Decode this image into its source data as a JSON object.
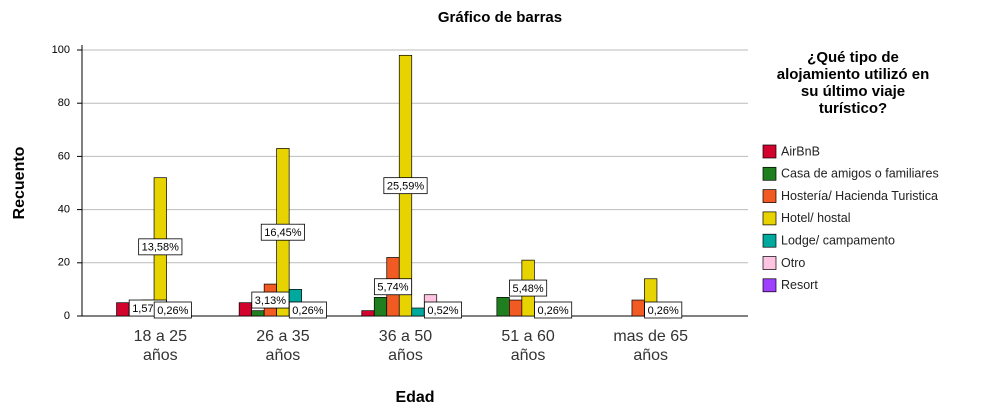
{
  "chart_data": {
    "type": "bar",
    "title": "Gráfico de barras",
    "x_label": "Edad",
    "y_label": "Recuento",
    "legend_title": "¿Qué tipo de alojamiento utilizó en su último viaje turístico?",
    "legend": "right",
    "categories": [
      "18 a 25 años",
      "26 a 35 años",
      "36 a 50 años",
      "51 a 60 años",
      "mas de 65 años"
    ],
    "series": [
      {
        "name": "AirBnB",
        "color": "#d2042d",
        "values": [
          5,
          5,
          2,
          0,
          0
        ],
        "percent_labels": [
          null,
          null,
          null,
          null,
          null
        ]
      },
      {
        "name": "Casa de amigos o familiares",
        "color": "#1f7f1f",
        "values": [
          0,
          2,
          7,
          7,
          0
        ],
        "percent_labels": [
          null,
          null,
          null,
          null,
          null
        ]
      },
      {
        "name": "Hostería/ Hacienda Turistica",
        "color": "#f15a22",
        "values": [
          6,
          12,
          22,
          6,
          6
        ],
        "percent_labels": [
          "1,57%",
          "3,13%",
          "5,74%",
          null,
          null
        ]
      },
      {
        "name": "Hotel/ hostal",
        "color": "#e6d300",
        "values": [
          52,
          63,
          98,
          21,
          14
        ],
        "percent_labels": [
          "13,58%",
          "16,45%",
          "25,59%",
          "5,48%",
          null
        ]
      },
      {
        "name": "Lodge/ campamento",
        "color": "#00a99d",
        "values": [
          1,
          10,
          3,
          2,
          1
        ],
        "percent_labels": [
          "0,26%",
          null,
          null,
          null,
          "0,26%"
        ]
      },
      {
        "name": "Otro",
        "color": "#ffc4e1",
        "values": [
          0,
          1,
          8,
          1,
          0
        ],
        "percent_labels": [
          null,
          "0,26%",
          null,
          "0,26%",
          null
        ]
      },
      {
        "name": "Resort",
        "color": "#a040ff",
        "values": [
          0,
          0,
          2,
          0,
          0
        ],
        "percent_labels": [
          null,
          null,
          "0,52%",
          null,
          null
        ]
      }
    ],
    "ylim": [
      0,
      100
    ],
    "yticks": [
      0,
      20,
      40,
      60,
      80,
      100
    ],
    "grid": true
  }
}
